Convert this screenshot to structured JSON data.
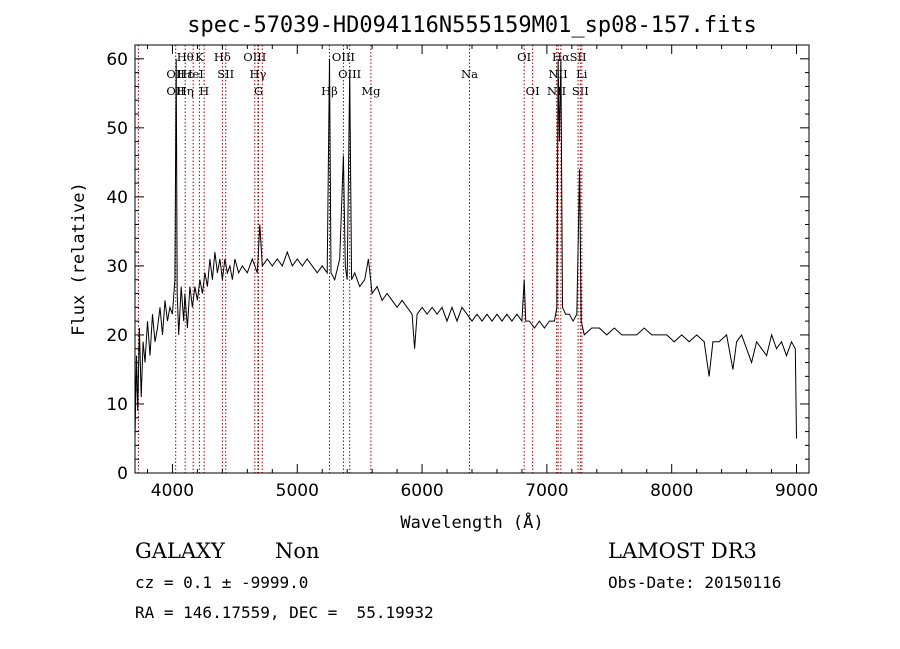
{
  "chart_data": {
    "type": "line",
    "title": "spec-57039-HD094116N555159M01_sp08-157.fits",
    "xlabel": "Wavelength (Å)",
    "ylabel": "Flux (relative)",
    "xlim": [
      3700,
      9100
    ],
    "ylim": [
      0,
      62
    ],
    "xticks": [
      4000,
      5000,
      6000,
      7000,
      8000,
      9000
    ],
    "yticks": [
      0,
      10,
      20,
      30,
      40,
      50,
      60
    ],
    "series": [
      {
        "name": "spectrum",
        "points": [
          [
            3700,
            5
          ],
          [
            3712,
            17
          ],
          [
            3722,
            9
          ],
          [
            3735,
            21
          ],
          [
            3750,
            11
          ],
          [
            3765,
            19
          ],
          [
            3780,
            16
          ],
          [
            3800,
            22
          ],
          [
            3820,
            17
          ],
          [
            3840,
            23
          ],
          [
            3860,
            19
          ],
          [
            3880,
            21
          ],
          [
            3900,
            24
          ],
          [
            3920,
            20
          ],
          [
            3940,
            25
          ],
          [
            3960,
            22
          ],
          [
            3980,
            24
          ],
          [
            4000,
            23
          ],
          [
            4020,
            28
          ],
          [
            4030,
            60
          ],
          [
            4038,
            26
          ],
          [
            4050,
            20
          ],
          [
            4070,
            27
          ],
          [
            4090,
            22
          ],
          [
            4100,
            26
          ],
          [
            4120,
            21
          ],
          [
            4140,
            27
          ],
          [
            4160,
            24
          ],
          [
            4180,
            27
          ],
          [
            4200,
            25
          ],
          [
            4220,
            28
          ],
          [
            4240,
            26
          ],
          [
            4260,
            29
          ],
          [
            4280,
            27
          ],
          [
            4300,
            31
          ],
          [
            4320,
            28
          ],
          [
            4340,
            32
          ],
          [
            4360,
            29
          ],
          [
            4380,
            31
          ],
          [
            4400,
            28
          ],
          [
            4420,
            31
          ],
          [
            4440,
            29
          ],
          [
            4460,
            30
          ],
          [
            4480,
            28
          ],
          [
            4500,
            31
          ],
          [
            4530,
            29
          ],
          [
            4560,
            30
          ],
          [
            4600,
            29
          ],
          [
            4640,
            31
          ],
          [
            4680,
            29
          ],
          [
            4700,
            36
          ],
          [
            4720,
            30
          ],
          [
            4760,
            31
          ],
          [
            4800,
            30
          ],
          [
            4840,
            31
          ],
          [
            4880,
            30
          ],
          [
            4920,
            32
          ],
          [
            4960,
            30
          ],
          [
            5000,
            31
          ],
          [
            5040,
            30
          ],
          [
            5080,
            31
          ],
          [
            5120,
            30
          ],
          [
            5160,
            29
          ],
          [
            5200,
            30
          ],
          [
            5240,
            29
          ],
          [
            5258,
            60
          ],
          [
            5270,
            29
          ],
          [
            5300,
            28
          ],
          [
            5340,
            31
          ],
          [
            5370,
            46
          ],
          [
            5385,
            30
          ],
          [
            5400,
            28
          ],
          [
            5420,
            58
          ],
          [
            5435,
            28
          ],
          [
            5460,
            29
          ],
          [
            5500,
            27
          ],
          [
            5540,
            28
          ],
          [
            5570,
            31
          ],
          [
            5600,
            26
          ],
          [
            5640,
            27
          ],
          [
            5680,
            25
          ],
          [
            5720,
            26
          ],
          [
            5760,
            25
          ],
          [
            5800,
            24
          ],
          [
            5840,
            25
          ],
          [
            5880,
            24
          ],
          [
            5920,
            23
          ],
          [
            5940,
            18
          ],
          [
            5960,
            23
          ],
          [
            6000,
            24
          ],
          [
            6040,
            23
          ],
          [
            6080,
            24
          ],
          [
            6120,
            23
          ],
          [
            6160,
            24
          ],
          [
            6200,
            22
          ],
          [
            6240,
            24
          ],
          [
            6280,
            22
          ],
          [
            6320,
            24
          ],
          [
            6360,
            23
          ],
          [
            6400,
            22
          ],
          [
            6440,
            23
          ],
          [
            6480,
            22
          ],
          [
            6520,
            23
          ],
          [
            6560,
            22
          ],
          [
            6600,
            23
          ],
          [
            6640,
            22
          ],
          [
            6680,
            23
          ],
          [
            6720,
            22
          ],
          [
            6760,
            23
          ],
          [
            6800,
            22
          ],
          [
            6818,
            28
          ],
          [
            6830,
            22
          ],
          [
            6860,
            22
          ],
          [
            6900,
            21
          ],
          [
            6940,
            22
          ],
          [
            6980,
            21
          ],
          [
            7020,
            22
          ],
          [
            7060,
            22
          ],
          [
            7080,
            24
          ],
          [
            7090,
            60
          ],
          [
            7100,
            48
          ],
          [
            7112,
            60
          ],
          [
            7125,
            24
          ],
          [
            7150,
            23
          ],
          [
            7180,
            23
          ],
          [
            7210,
            22
          ],
          [
            7240,
            23
          ],
          [
            7262,
            44
          ],
          [
            7275,
            22
          ],
          [
            7300,
            20
          ],
          [
            7360,
            21
          ],
          [
            7420,
            21
          ],
          [
            7480,
            20
          ],
          [
            7540,
            21
          ],
          [
            7600,
            20
          ],
          [
            7660,
            20
          ],
          [
            7720,
            20
          ],
          [
            7780,
            21
          ],
          [
            7840,
            20
          ],
          [
            7900,
            20
          ],
          [
            7960,
            20
          ],
          [
            8020,
            19
          ],
          [
            8080,
            20
          ],
          [
            8140,
            19
          ],
          [
            8200,
            20
          ],
          [
            8260,
            19
          ],
          [
            8300,
            14
          ],
          [
            8330,
            19
          ],
          [
            8380,
            19
          ],
          [
            8440,
            20
          ],
          [
            8490,
            15
          ],
          [
            8520,
            19
          ],
          [
            8560,
            20
          ],
          [
            8600,
            18
          ],
          [
            8640,
            16
          ],
          [
            8680,
            19
          ],
          [
            8720,
            18
          ],
          [
            8760,
            17
          ],
          [
            8800,
            20
          ],
          [
            8840,
            18
          ],
          [
            8880,
            19
          ],
          [
            8920,
            17
          ],
          [
            8960,
            19
          ],
          [
            8990,
            18
          ],
          [
            9000,
            5
          ]
        ]
      }
    ],
    "lines": [
      {
        "wave": 3727,
        "labels": [],
        "row": 0
      },
      {
        "wave": 4026,
        "labels": [
          "OII",
          "OII"
        ],
        "row": 1
      },
      {
        "wave": 4102,
        "labels": [
          "Hθ",
          "Hε",
          "Hη"
        ],
        "row": 0
      },
      {
        "wave": 4166,
        "labels": [
          "HeI"
        ],
        "row": 1
      },
      {
        "wave": 4216,
        "labels": [
          "K"
        ],
        "row": 0
      },
      {
        "wave": 4254,
        "labels": [
          "H"
        ],
        "row": 2
      },
      {
        "wave": 4400,
        "labels": [
          "Hδ"
        ],
        "row": 0
      },
      {
        "wave": 4427,
        "labels": [
          "SII"
        ],
        "row": 1
      },
      {
        "wave": 4660,
        "labels": [
          "OIII"
        ],
        "row": 0
      },
      {
        "wave": 4685,
        "labels": [
          "Hγ"
        ],
        "row": 1
      },
      {
        "wave": 4690,
        "labels": [
          "G"
        ],
        "row": 2
      },
      {
        "wave": 4720,
        "labels": [],
        "row": 0
      },
      {
        "wave": 5258,
        "labels": [
          "Hβ"
        ],
        "row": 2
      },
      {
        "wave": 5370,
        "labels": [
          "OIII"
        ],
        "row": 0
      },
      {
        "wave": 5420,
        "labels": [
          "OIII"
        ],
        "row": 1
      },
      {
        "wave": 5590,
        "labels": [
          "Mg"
        ],
        "row": 2
      },
      {
        "wave": 6380,
        "labels": [
          "Na"
        ],
        "row": 1
      },
      {
        "wave": 6818,
        "labels": [
          "OI"
        ],
        "row": 0
      },
      {
        "wave": 6886,
        "labels": [
          "OI"
        ],
        "row": 2
      },
      {
        "wave": 7078,
        "labels": [
          "NII"
        ],
        "row": 2
      },
      {
        "wave": 7090,
        "labels": [
          "NII"
        ],
        "row": 1
      },
      {
        "wave": 7112,
        "labels": [
          "Hα"
        ],
        "row": 0
      },
      {
        "wave": 7250,
        "labels": [
          "SII"
        ],
        "row": 0
      },
      {
        "wave": 7268,
        "labels": [
          "SII"
        ],
        "row": 2
      },
      {
        "wave": 7280,
        "labels": [
          "Li"
        ],
        "row": 1
      }
    ]
  },
  "info": {
    "class": "GALAXY",
    "subclass": "Non",
    "survey": "LAMOST DR3",
    "cz": "cz = 0.1 ± -9999.0",
    "obsdate": "Obs-Date: 20150116",
    "radec": "RA = 146.17559, DEC =  55.19932"
  }
}
